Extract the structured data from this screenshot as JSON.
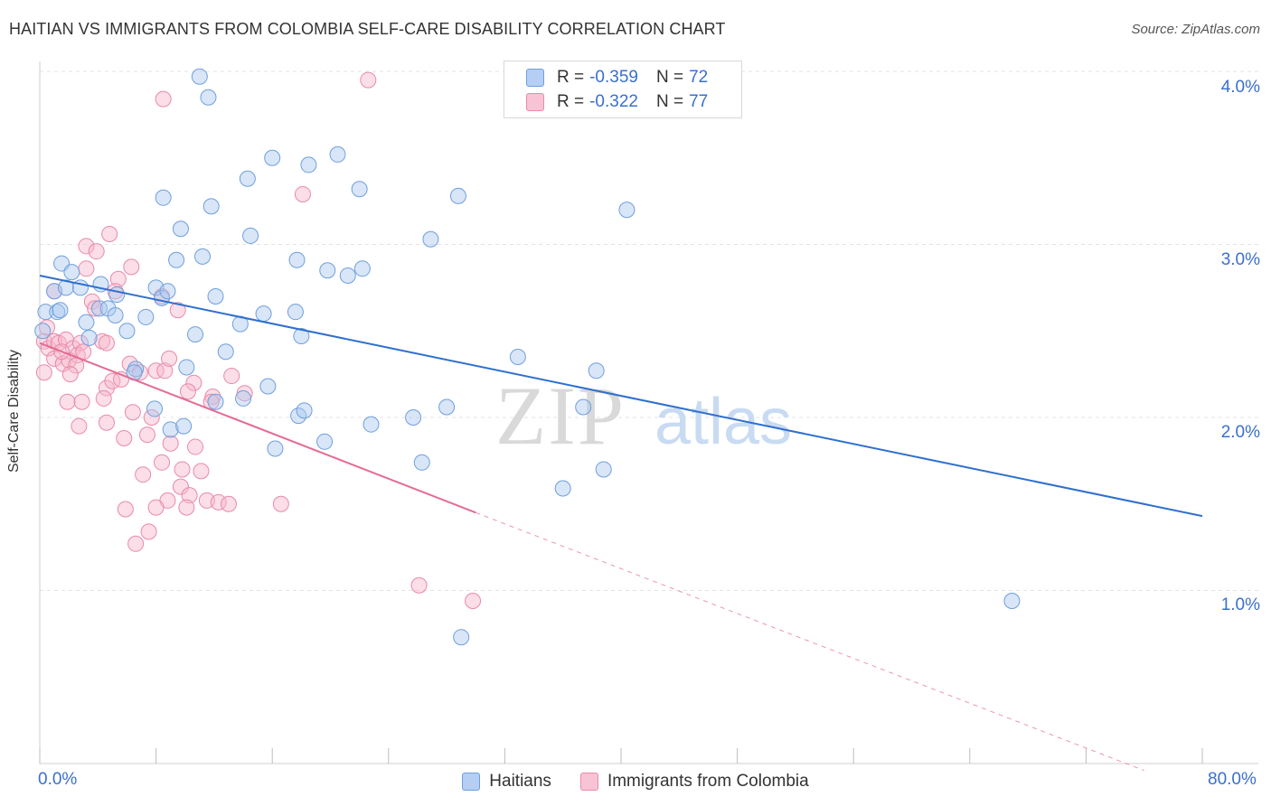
{
  "title": "HAITIAN VS IMMIGRANTS FROM COLOMBIA SELF-CARE DISABILITY CORRELATION CHART",
  "source": "Source: ZipAtlas.com",
  "watermark": {
    "zip": "ZIP",
    "atlas": "atlas"
  },
  "legend_top": [
    {
      "r_label": "R = ",
      "r_value": "-0.359",
      "n_label": "N = ",
      "n_value": "72"
    },
    {
      "r_label": "R = ",
      "r_value": "-0.322",
      "n_label": "N = ",
      "n_value": "77"
    }
  ],
  "legend_bottom": [
    "Haitians",
    "Immigrants from Colombia"
  ],
  "x_ticks": {
    "min": "0.0%",
    "max": "80.0%"
  },
  "y_ticks": [
    "1.0%",
    "2.0%",
    "3.0%",
    "4.0%"
  ],
  "colors": {
    "blue_fill": "#a9c8f0",
    "blue_stroke": "#6f9fdc",
    "blue_line": "#2f6fcf",
    "pink_fill": "#f6b5c9",
    "pink_stroke": "#e98aaa",
    "pink_line": "#e46b93",
    "grid": "#e3e3e3",
    "tick_text": "#3a6fcf"
  },
  "chart_data": {
    "type": "scatter",
    "title": "HAITIAN VS IMMIGRANTS FROM COLOMBIA SELF-CARE DISABILITY CORRELATION CHART",
    "xlabel": "",
    "ylabel": "Self-Care Disability",
    "xlim": [
      0,
      80
    ],
    "ylim": [
      0,
      4.2
    ],
    "grid": true,
    "legend_placement": "top-center",
    "series": [
      {
        "name": "Haitians",
        "r": -0.359,
        "n": 72,
        "trend": {
          "x0": 0,
          "y0": 2.82,
          "x1": 80,
          "y1": 1.43
        },
        "points": [
          [
            11.0,
            3.97
          ],
          [
            11.6,
            3.85
          ],
          [
            8.5,
            3.27
          ],
          [
            14.3,
            3.38
          ],
          [
            16.0,
            3.5
          ],
          [
            18.5,
            3.46
          ],
          [
            20.5,
            3.52
          ],
          [
            22.0,
            3.32
          ],
          [
            28.8,
            3.28
          ],
          [
            40.4,
            3.2
          ],
          [
            11.8,
            3.22
          ],
          [
            9.7,
            3.09
          ],
          [
            14.5,
            3.05
          ],
          [
            26.9,
            3.03
          ],
          [
            1.5,
            2.89
          ],
          [
            2.2,
            2.84
          ],
          [
            9.4,
            2.91
          ],
          [
            11.2,
            2.93
          ],
          [
            17.7,
            2.91
          ],
          [
            19.8,
            2.85
          ],
          [
            22.2,
            2.86
          ],
          [
            21.2,
            2.82
          ],
          [
            1.0,
            2.73
          ],
          [
            1.8,
            2.75
          ],
          [
            2.8,
            2.75
          ],
          [
            4.2,
            2.77
          ],
          [
            5.3,
            2.71
          ],
          [
            8.0,
            2.75
          ],
          [
            8.4,
            2.69
          ],
          [
            8.8,
            2.73
          ],
          [
            12.1,
            2.7
          ],
          [
            0.4,
            2.61
          ],
          [
            1.2,
            2.61
          ],
          [
            3.2,
            2.55
          ],
          [
            4.1,
            2.63
          ],
          [
            4.7,
            2.63
          ],
          [
            5.2,
            2.59
          ],
          [
            7.3,
            2.58
          ],
          [
            15.4,
            2.6
          ],
          [
            17.6,
            2.61
          ],
          [
            0.2,
            2.5
          ],
          [
            3.4,
            2.46
          ],
          [
            6.0,
            2.5
          ],
          [
            10.7,
            2.48
          ],
          [
            13.8,
            2.54
          ],
          [
            18.0,
            2.47
          ],
          [
            12.8,
            2.38
          ],
          [
            12.1,
            2.09
          ],
          [
            10.1,
            2.29
          ],
          [
            6.6,
            2.28
          ],
          [
            6.5,
            2.26
          ],
          [
            14.0,
            2.11
          ],
          [
            15.7,
            2.18
          ],
          [
            17.8,
            2.01
          ],
          [
            32.9,
            2.35
          ],
          [
            38.3,
            2.27
          ],
          [
            18.2,
            2.04
          ],
          [
            25.7,
            2.0
          ],
          [
            7.9,
            2.05
          ],
          [
            9.0,
            1.93
          ],
          [
            9.9,
            1.95
          ],
          [
            22.8,
            1.96
          ],
          [
            28.0,
            2.06
          ],
          [
            37.4,
            2.06
          ],
          [
            16.2,
            1.82
          ],
          [
            19.6,
            1.86
          ],
          [
            26.3,
            1.74
          ],
          [
            38.8,
            1.7
          ],
          [
            36.0,
            1.59
          ],
          [
            66.9,
            0.94
          ],
          [
            29.0,
            0.73
          ],
          [
            1.4,
            2.62
          ]
        ]
      },
      {
        "name": "Immigrants from Colombia",
        "r": -0.322,
        "n": 77,
        "trend": {
          "x0": 0,
          "y0": 2.43,
          "x1": 30,
          "y1": 1.45,
          "dash_x1": 76,
          "dash_y1": -0.04
        },
        "points": [
          [
            22.6,
            3.95
          ],
          [
            8.5,
            3.84
          ],
          [
            18.1,
            3.29
          ],
          [
            4.8,
            3.06
          ],
          [
            3.2,
            2.99
          ],
          [
            3.9,
            2.96
          ],
          [
            3.2,
            2.86
          ],
          [
            6.3,
            2.87
          ],
          [
            1.0,
            2.73
          ],
          [
            3.6,
            2.67
          ],
          [
            5.4,
            2.8
          ],
          [
            3.8,
            2.63
          ],
          [
            5.2,
            2.73
          ],
          [
            8.4,
            2.7
          ],
          [
            9.5,
            2.62
          ],
          [
            0.3,
            2.44
          ],
          [
            0.6,
            2.4
          ],
          [
            1.0,
            2.44
          ],
          [
            1.3,
            2.43
          ],
          [
            1.8,
            2.45
          ],
          [
            2.3,
            2.4
          ],
          [
            2.8,
            2.43
          ],
          [
            1.0,
            2.34
          ],
          [
            1.6,
            2.31
          ],
          [
            2.0,
            2.33
          ],
          [
            2.6,
            2.36
          ],
          [
            4.3,
            2.44
          ],
          [
            4.6,
            2.43
          ],
          [
            0.3,
            2.26
          ],
          [
            2.5,
            2.3
          ],
          [
            6.2,
            2.31
          ],
          [
            8.0,
            2.27
          ],
          [
            8.6,
            2.27
          ],
          [
            8.9,
            2.34
          ],
          [
            4.6,
            2.17
          ],
          [
            5.0,
            2.21
          ],
          [
            5.6,
            2.22
          ],
          [
            10.6,
            2.2
          ],
          [
            14.1,
            2.14
          ],
          [
            1.9,
            2.09
          ],
          [
            2.9,
            2.09
          ],
          [
            4.4,
            2.11
          ],
          [
            6.4,
            2.03
          ],
          [
            7.7,
            2.0
          ],
          [
            10.2,
            2.15
          ],
          [
            11.9,
            2.12
          ],
          [
            2.7,
            1.95
          ],
          [
            4.6,
            1.97
          ],
          [
            5.8,
            1.88
          ],
          [
            7.4,
            1.9
          ],
          [
            9.0,
            1.85
          ],
          [
            10.7,
            1.83
          ],
          [
            8.4,
            1.74
          ],
          [
            7.1,
            1.67
          ],
          [
            9.8,
            1.7
          ],
          [
            11.1,
            1.69
          ],
          [
            9.7,
            1.6
          ],
          [
            10.3,
            1.55
          ],
          [
            11.5,
            1.52
          ],
          [
            12.3,
            1.51
          ],
          [
            13.0,
            1.5
          ],
          [
            16.6,
            1.5
          ],
          [
            8.8,
            1.52
          ],
          [
            5.9,
            1.47
          ],
          [
            8.0,
            1.48
          ],
          [
            10.1,
            1.48
          ],
          [
            7.5,
            1.34
          ],
          [
            6.6,
            1.27
          ],
          [
            26.1,
            1.03
          ],
          [
            29.8,
            0.94
          ],
          [
            0.5,
            2.52
          ],
          [
            1.5,
            2.38
          ],
          [
            3.0,
            2.38
          ],
          [
            2.1,
            2.25
          ],
          [
            6.9,
            2.26
          ],
          [
            11.8,
            2.09
          ],
          [
            13.2,
            2.24
          ]
        ]
      }
    ]
  }
}
